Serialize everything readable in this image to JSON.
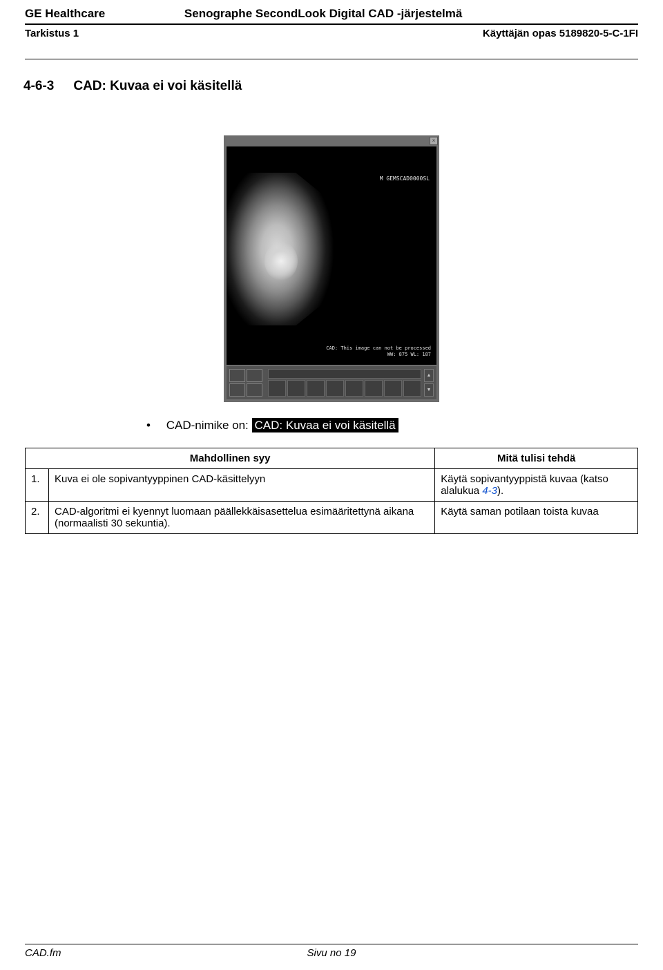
{
  "header": {
    "brand": "GE Healthcare",
    "product": "Senographe SecondLook Digital CAD -järjestelmä",
    "revision": "Tarkistus 1",
    "docref": "Käyttäjän opas 5189820-5-C-1FI"
  },
  "section": {
    "number": "4-6-3",
    "title": "CAD: Kuvaa ei voi käsitellä"
  },
  "figure": {
    "overlay_id": "M GEMSCAD0000SL",
    "cad_line1": "CAD: This image can not be processed",
    "cad_line2": "WW: 875  WL: 187"
  },
  "bullet": {
    "lead": "CAD-nimike on:",
    "highlight": " CAD: Kuvaa ei voi käsitellä "
  },
  "table": {
    "col_cause": "Mahdollinen syy",
    "col_action": "Mitä tulisi tehdä",
    "rows": [
      {
        "num": "1.",
        "cause": "Kuva ei ole sopivantyyppinen CAD-käsittelyyn",
        "action_pre": "Käytä sopivantyyppistä kuvaa (katso alalukua ",
        "action_xref": "4-3",
        "action_post": ")."
      },
      {
        "num": "2.",
        "cause": "CAD-algoritmi ei kyennyt luomaan päällekkäisasettelua esimääritettynä aikana (normaalisti 30 sekuntia).",
        "action_pre": "Käytä saman potilaan toista kuvaa",
        "action_xref": "",
        "action_post": ""
      }
    ]
  },
  "footer": {
    "left": "CAD.fm",
    "center": "Sivu no 19",
    "right": ""
  }
}
